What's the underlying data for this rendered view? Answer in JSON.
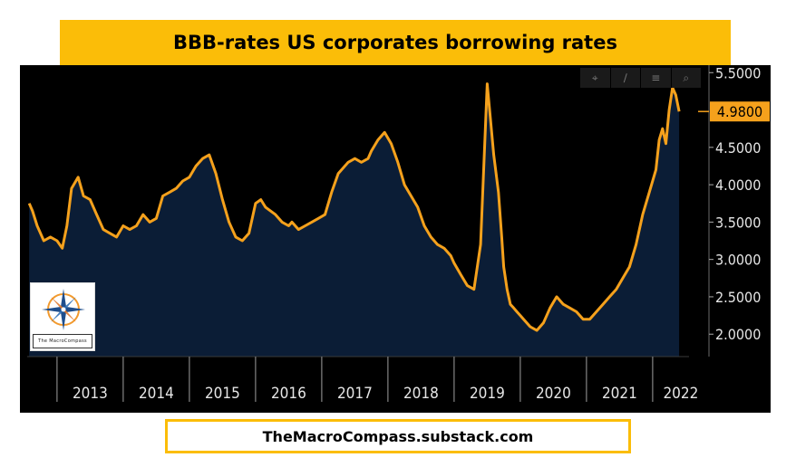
{
  "header": {
    "title": "BBB-rates US corporates borrowing rates"
  },
  "toolbar": {
    "icons": [
      "crosshair-icon",
      "draw-icon",
      "table-icon",
      "zoom-icon"
    ],
    "glyphs": [
      "⌖",
      "∕",
      "≡",
      "⌕"
    ]
  },
  "logo": {
    "caption_line1": "The",
    "caption_line2": "MacroCompass"
  },
  "footer": {
    "source": "TheMacroCompass.substack.com"
  },
  "colors": {
    "line": "#f5a11c",
    "area": "#0b1d36",
    "background": "#000000",
    "banner": "#fbbd08"
  },
  "chart_data": {
    "type": "area",
    "title": "BBB-rates US corporates borrowing rates",
    "xlabel": "",
    "ylabel": "",
    "x_tick_labels": [
      "2013",
      "2014",
      "2015",
      "2016",
      "2017",
      "2018",
      "2019",
      "2020",
      "2021",
      "2022"
    ],
    "y_tick_labels": [
      "2.0000",
      "2.5000",
      "3.0000",
      "3.5000",
      "4.0000",
      "4.5000",
      "5.5000"
    ],
    "y_ticks": [
      2.0,
      2.5,
      3.0,
      3.5,
      4.0,
      4.5,
      5.5
    ],
    "ylim": [
      1.7,
      5.6
    ],
    "xlim": [
      2012.55,
      2022.55
    ],
    "last_value": 4.98,
    "last_value_label": "4.9800",
    "axis_position": "right",
    "grid": false,
    "series": [
      {
        "x": [
          2012.58,
          2012.63,
          2012.7,
          2012.8,
          2012.9,
          2013.0,
          2013.08,
          2013.15,
          2013.22,
          2013.32,
          2013.4,
          2013.5,
          2013.6,
          2013.7,
          2013.8,
          2013.9,
          2014.0,
          2014.1,
          2014.2,
          2014.3,
          2014.4,
          2014.5,
          2014.6,
          2014.7,
          2014.8,
          2014.9,
          2015.0,
          2015.1,
          2015.2,
          2015.3,
          2015.4,
          2015.5,
          2015.6,
          2015.7,
          2015.8,
          2015.9,
          2016.0,
          2016.08,
          2016.15,
          2016.3,
          2016.4,
          2016.5,
          2016.55,
          2016.65,
          2016.75,
          2016.85,
          2016.95,
          2017.05,
          2017.15,
          2017.25,
          2017.4,
          2017.5,
          2017.6,
          2017.7,
          2017.75,
          2017.85,
          2017.95,
          2018.05,
          2018.15,
          2018.25,
          2018.35,
          2018.45,
          2018.55,
          2018.65,
          2018.75,
          2018.85,
          2018.95,
          2019.0,
          2019.1,
          2019.2,
          2019.3,
          2019.4,
          2019.5,
          2019.6,
          2019.67,
          2019.72,
          2019.75,
          2019.8,
          2019.85,
          2019.9,
          2019.95,
          2020.0,
          2020.05,
          2020.15,
          2020.25,
          2020.35,
          2020.45,
          2020.55,
          2020.65,
          2020.75,
          2020.85,
          2020.95,
          2021.05,
          2021.15,
          2021.25,
          2021.35,
          2021.45,
          2021.55,
          2021.65,
          2021.75,
          2021.85,
          2021.95,
          2022.05,
          2022.1,
          2022.15,
          2022.2,
          2022.25,
          2022.3,
          2022.35,
          2022.4
        ],
        "y": [
          3.75,
          3.65,
          3.45,
          3.25,
          3.3,
          3.25,
          3.15,
          3.45,
          3.95,
          4.1,
          3.85,
          3.8,
          3.6,
          3.4,
          3.35,
          3.3,
          3.45,
          3.4,
          3.45,
          3.6,
          3.5,
          3.55,
          3.85,
          3.9,
          3.95,
          4.05,
          4.1,
          4.25,
          4.35,
          4.4,
          4.15,
          3.8,
          3.5,
          3.3,
          3.25,
          3.35,
          3.75,
          3.8,
          3.7,
          3.6,
          3.5,
          3.45,
          3.5,
          3.4,
          3.45,
          3.5,
          3.55,
          3.6,
          3.9,
          4.15,
          4.3,
          4.35,
          4.3,
          4.35,
          4.45,
          4.6,
          4.7,
          4.55,
          4.3,
          4.0,
          3.85,
          3.7,
          3.45,
          3.3,
          3.2,
          3.15,
          3.05,
          2.95,
          2.8,
          2.65,
          2.6,
          3.2,
          5.35,
          4.4,
          3.9,
          3.3,
          2.9,
          2.6,
          2.4,
          2.35,
          2.3,
          2.25,
          2.2,
          2.1,
          2.05,
          2.15,
          2.35,
          2.5,
          2.4,
          2.35,
          2.3,
          2.2,
          2.2,
          2.3,
          2.4,
          2.5,
          2.6,
          2.75,
          2.9,
          3.2,
          3.6,
          3.9,
          4.2,
          4.6,
          4.75,
          4.55,
          5.0,
          5.3,
          5.2,
          4.98
        ]
      }
    ]
  }
}
